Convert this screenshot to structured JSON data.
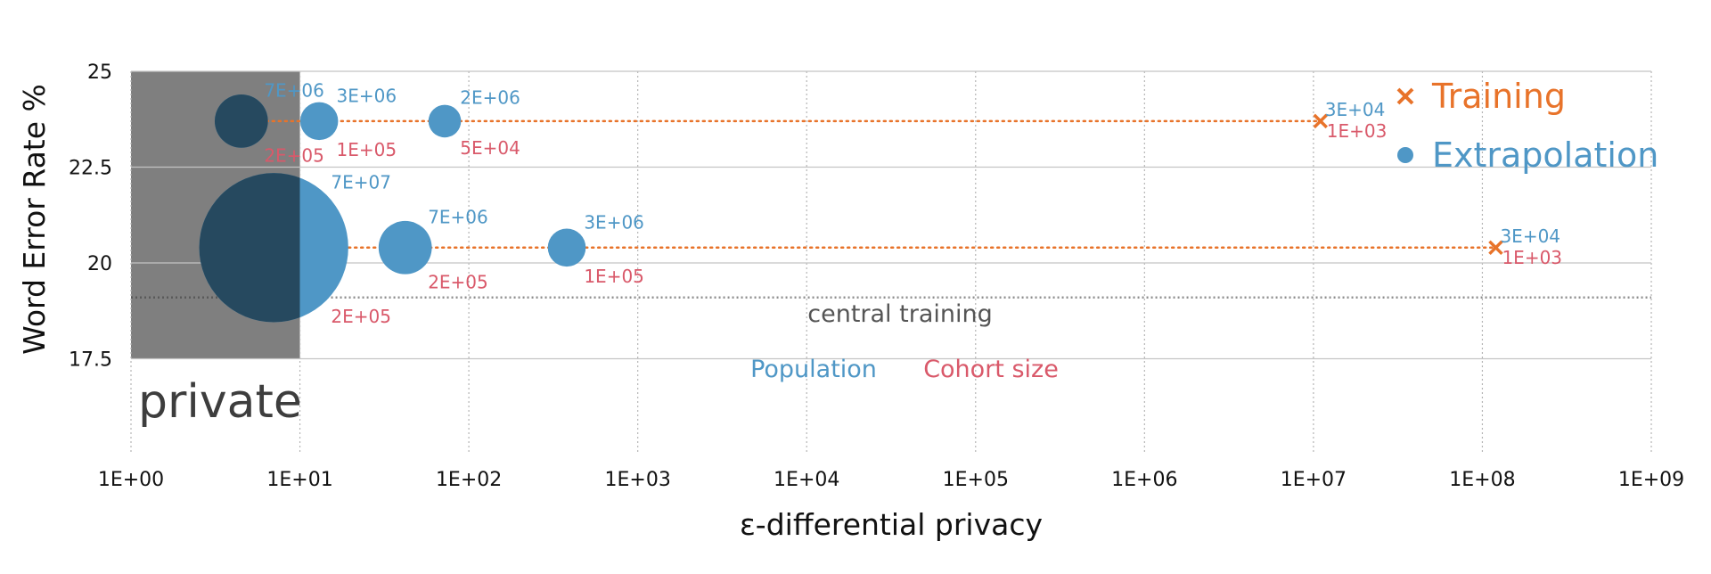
{
  "chart_data": {
    "type": "scatter",
    "xlabel": "ε-differential privacy",
    "ylabel": "Word Error Rate %",
    "x_scale": "log",
    "xlim": [
      1,
      1000000000
    ],
    "x_ticks": [
      "1E+00",
      "1E+01",
      "1E+02",
      "1E+03",
      "1E+04",
      "1E+05",
      "1E+06",
      "1E+07",
      "1E+08",
      "1E+09"
    ],
    "ylim": [
      15,
      25
    ],
    "y_ticks": [
      "25",
      "22.5",
      "20",
      "17.5"
    ],
    "y_tick_values": [
      25,
      22.5,
      20,
      17.5
    ],
    "grid": true,
    "legend_position": "top-right",
    "private_region": {
      "x": [
        1,
        10
      ],
      "label": "private"
    },
    "central_training": {
      "y": 19.1,
      "label": "central training"
    },
    "label_keys": {
      "population": "Population",
      "cohort": "Cohort size"
    },
    "series": [
      {
        "name": "Training",
        "marker": "x",
        "color": "#E8732A",
        "points": [
          {
            "x": 11000000,
            "y": 23.7,
            "population": "3E+04",
            "cohort": "1E+03"
          },
          {
            "x": 120000000,
            "y": 20.4,
            "population": "3E+04",
            "cohort": "1E+03"
          }
        ]
      },
      {
        "name": "Extrapolation",
        "marker": "circle",
        "color": "#4F97C6",
        "points": [
          {
            "x": 4.5,
            "y": 23.7,
            "population": "7E+06",
            "cohort": "2E+05",
            "size": 7000000
          },
          {
            "x": 13,
            "y": 23.7,
            "population": "3E+06",
            "cohort": "1E+05",
            "size": 3000000
          },
          {
            "x": 72,
            "y": 23.7,
            "population": "2E+06",
            "cohort": "5E+04",
            "size": 2000000
          },
          {
            "x": 7,
            "y": 20.4,
            "population": "7E+07",
            "cohort": "2E+05",
            "size": 70000000
          },
          {
            "x": 42,
            "y": 20.4,
            "population": "7E+06",
            "cohort": "2E+05",
            "size": 7000000
          },
          {
            "x": 380,
            "y": 20.4,
            "population": "3E+06",
            "cohort": "1E+05",
            "size": 3000000
          }
        ]
      }
    ],
    "trend_lines": [
      {
        "y": 23.7,
        "x_from": 4.5,
        "x_to": 11000000
      },
      {
        "y": 20.4,
        "x_from": 7,
        "x_to": 120000000
      }
    ]
  },
  "colors": {
    "training": "#E8732A",
    "extrapolation": "#4F97C6",
    "cohort": "#D9596A",
    "private_bg": "#7F7F7F",
    "private_text": "#3D3D3D",
    "central": "#555555"
  }
}
